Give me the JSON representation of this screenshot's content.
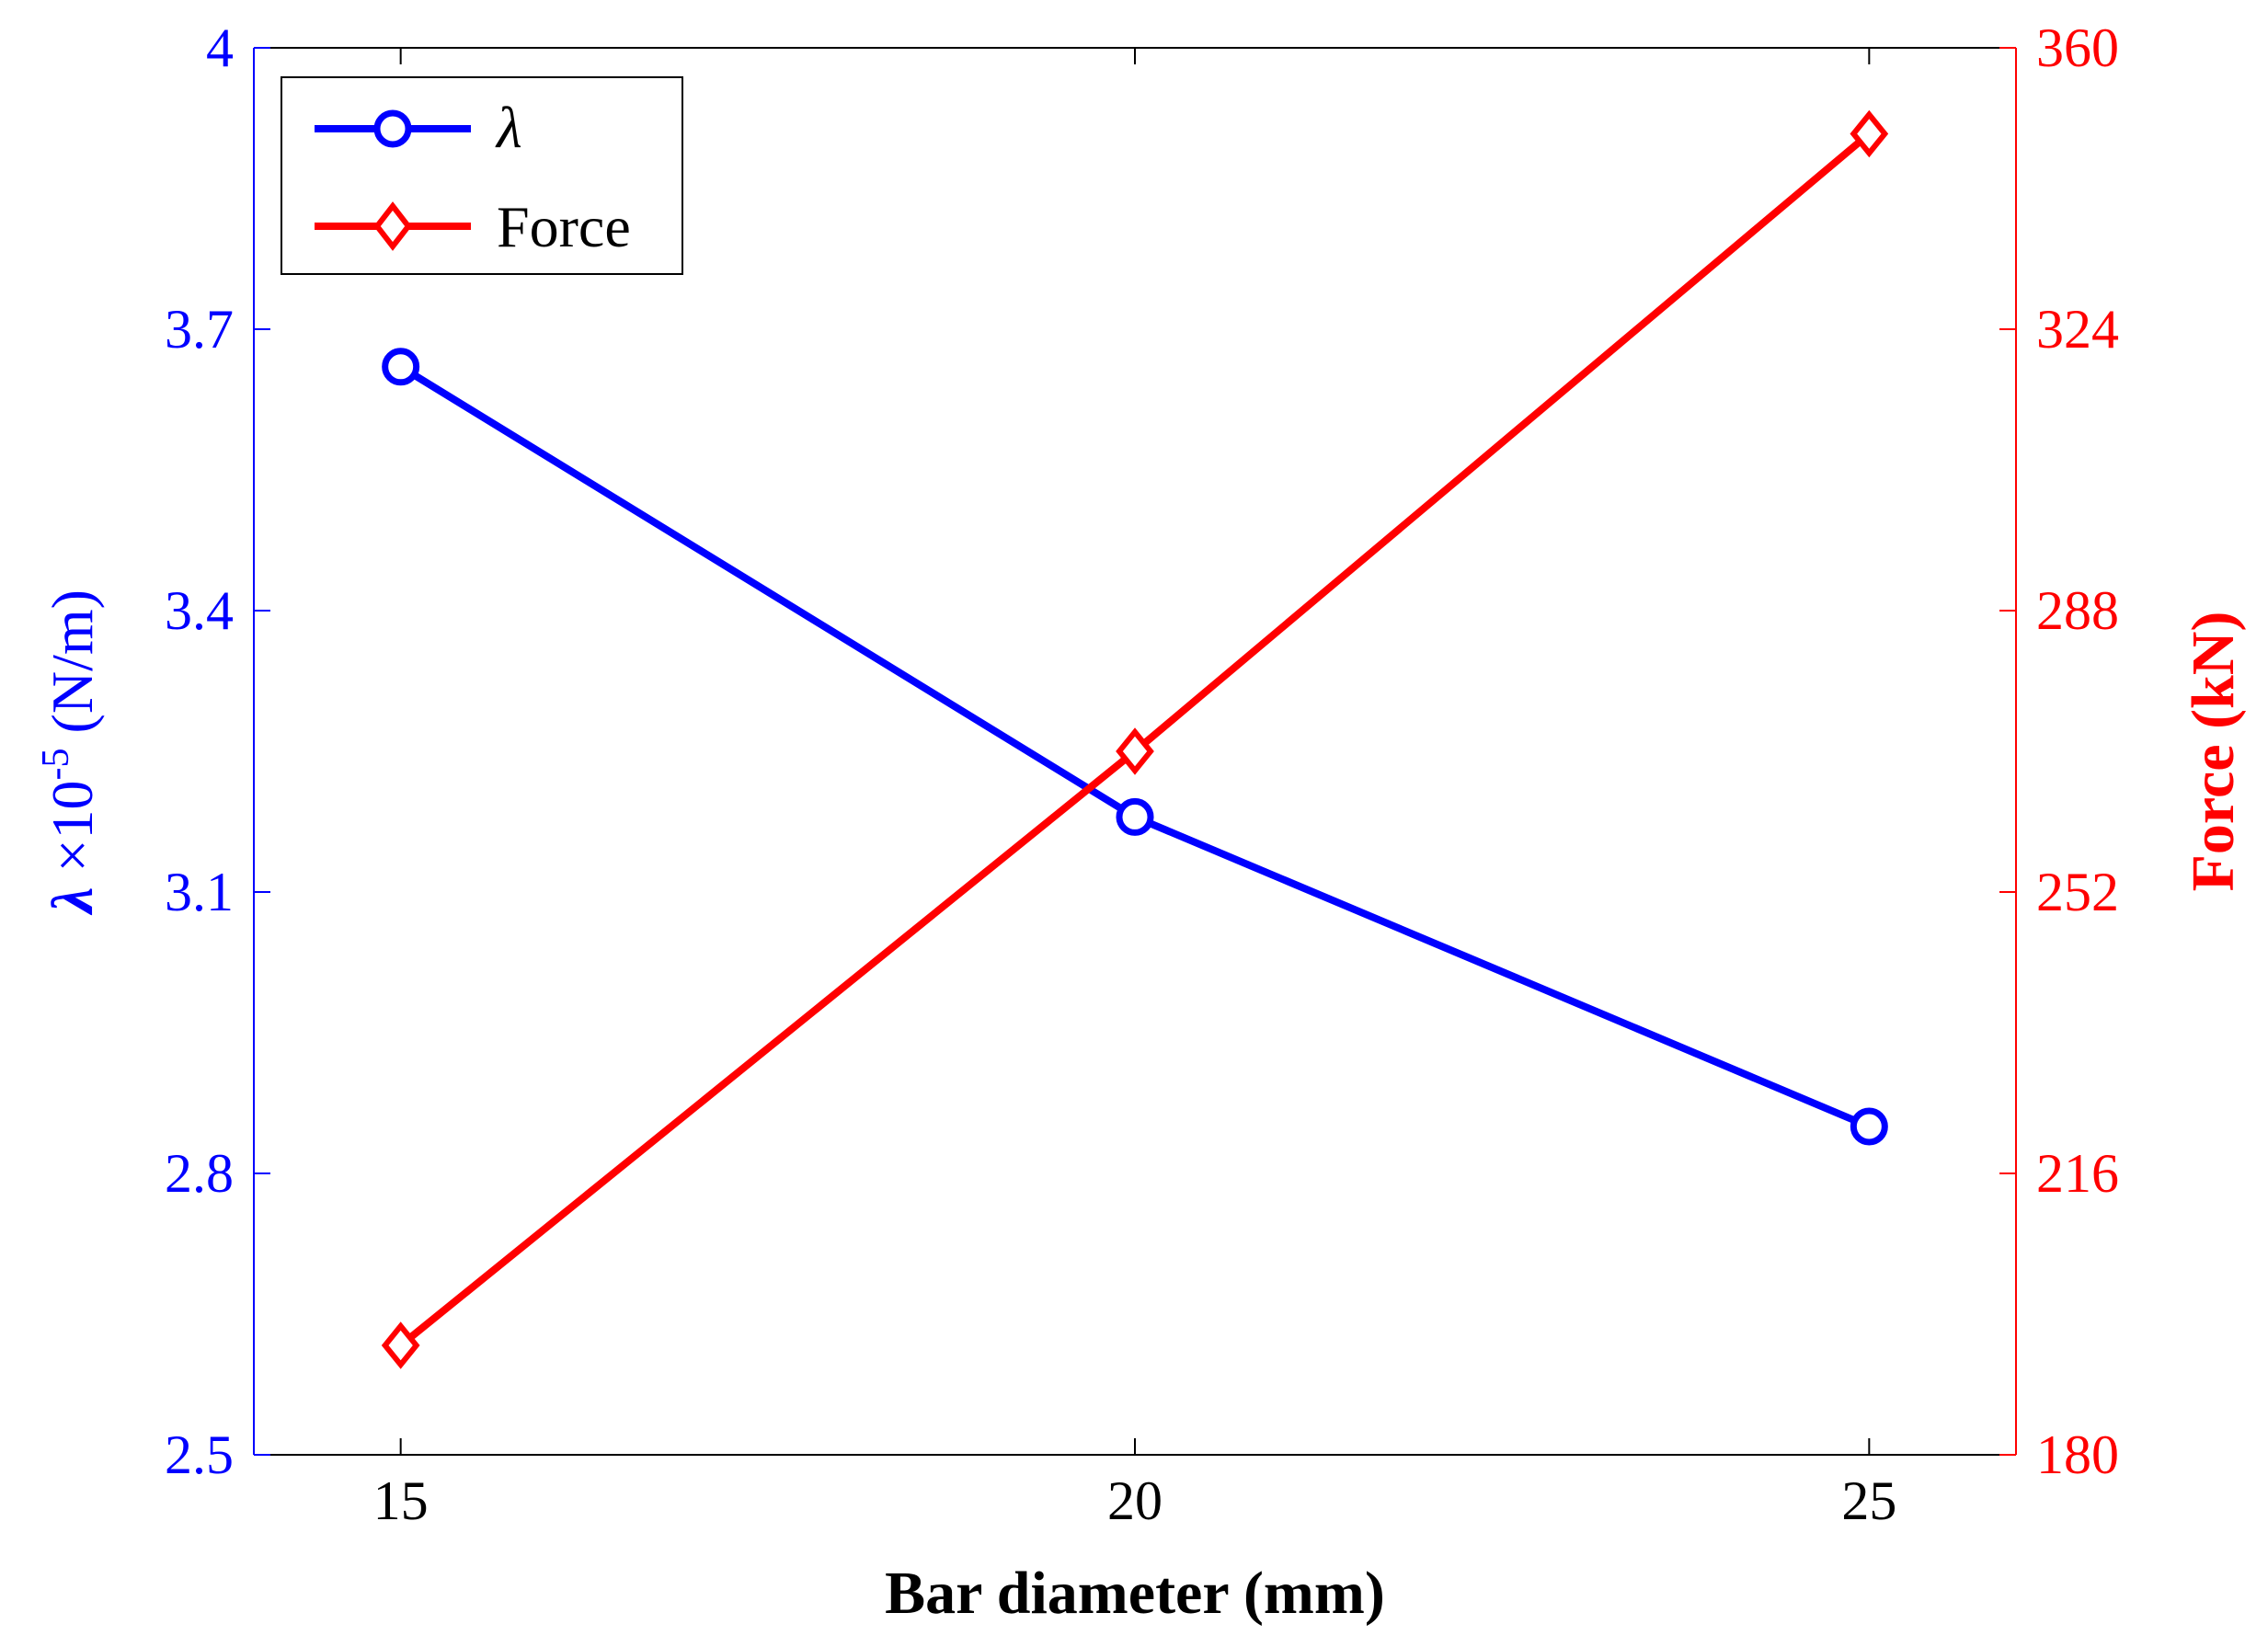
{
  "chart_data": {
    "type": "line",
    "xlabel": "Bar diameter (mm)",
    "ylabel_left": {
      "symbol": "λ",
      "mid": " ×10",
      "exponent": "-5",
      "unit": " (N/m)"
    },
    "ylabel_right": "Force (kN)",
    "x_ticks": [
      "15",
      "20",
      "25"
    ],
    "x_tick_values": [
      15,
      20,
      25
    ],
    "xlim": [
      14.0,
      26.0
    ],
    "y_left_ticks": [
      "2.5",
      "2.8",
      "3.1",
      "3.4",
      "3.7",
      "4"
    ],
    "y_left_tick_values": [
      2.5,
      2.8,
      3.1,
      3.4,
      3.7,
      4.0
    ],
    "ylim_left": [
      2.5,
      4.0
    ],
    "y_right_ticks": [
      "180",
      "216",
      "252",
      "288",
      "324",
      "360"
    ],
    "y_right_tick_values": [
      180,
      216,
      252,
      288,
      324,
      360
    ],
    "ylim_right": [
      180,
      360
    ],
    "grid": false,
    "legend_position": "top-left",
    "series": [
      {
        "name": "λ",
        "axis": "left",
        "marker": "circle",
        "color": "#0000ff",
        "x": [
          15,
          20,
          25
        ],
        "values": [
          3.66,
          3.18,
          2.85
        ]
      },
      {
        "name": "Force",
        "axis": "right",
        "marker": "diamond",
        "color": "#ff0000",
        "x": [
          15,
          20,
          25
        ],
        "values": [
          194,
          270,
          349
        ]
      }
    ]
  }
}
